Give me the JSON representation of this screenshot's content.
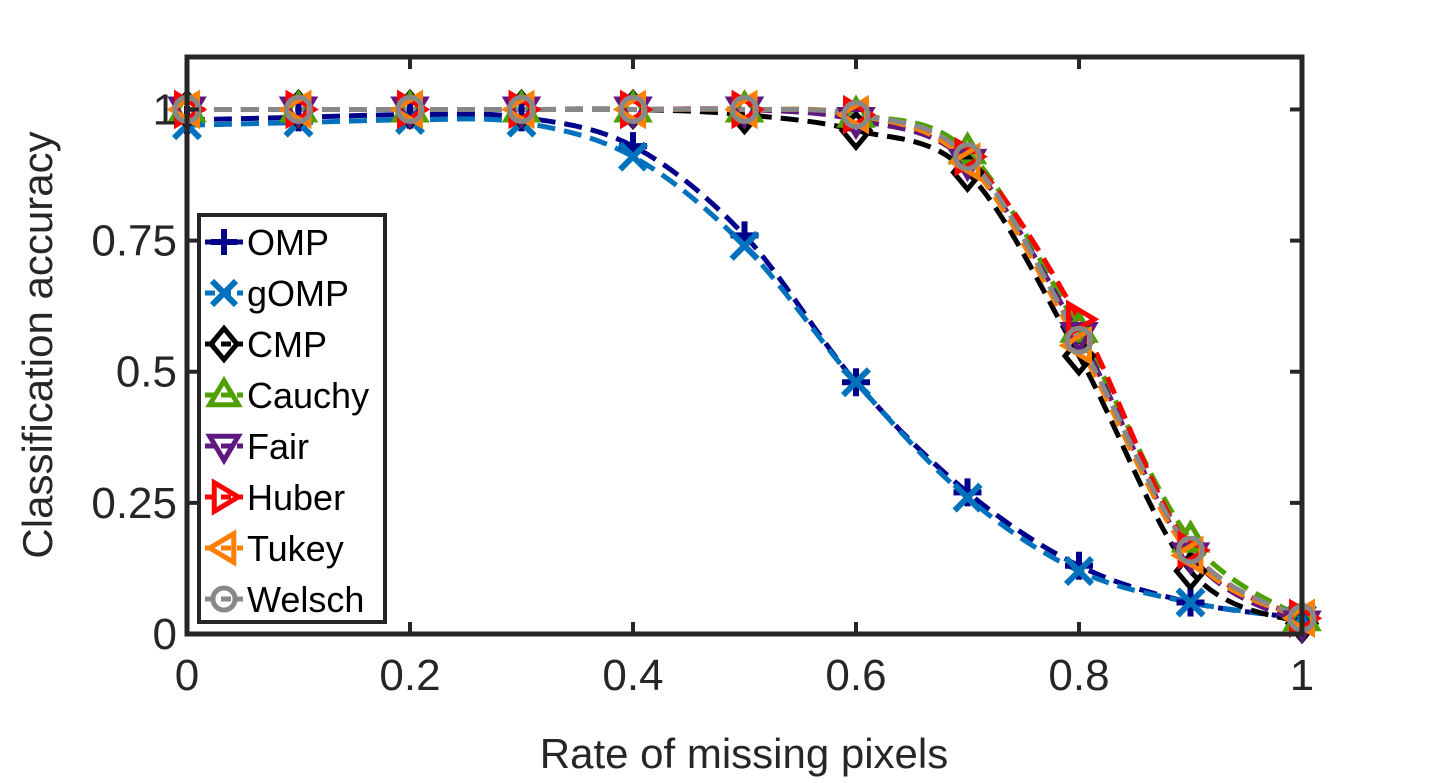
{
  "chart_data": {
    "type": "line",
    "title": "",
    "xlabel": "Rate of missing pixels",
    "ylabel": "Classification accuracy",
    "xlim": [
      0,
      1
    ],
    "ylim": [
      0,
      1.1
    ],
    "x_ticks": [
      0,
      0.2,
      0.4,
      0.6,
      0.8,
      1
    ],
    "x_tick_labels": [
      "0",
      "0.2",
      "0.4",
      "0.6",
      "0.8",
      "1"
    ],
    "y_ticks": [
      0,
      0.25,
      0.5,
      0.75,
      1
    ],
    "y_tick_labels": [
      "0",
      "0.25",
      "0.5",
      "0.75",
      "1"
    ],
    "grid": false,
    "legend_position": "left",
    "x": [
      0,
      0.1,
      0.2,
      0.3,
      0.4,
      0.5,
      0.6,
      0.7,
      0.8,
      0.9,
      1.0
    ],
    "series": [
      {
        "name": "OMP",
        "color": "#00008B",
        "marker": "plus",
        "values": [
          0.98,
          0.985,
          0.99,
          0.985,
          0.93,
          0.76,
          0.48,
          0.27,
          0.13,
          0.06,
          0.03
        ]
      },
      {
        "name": "gOMP",
        "color": "#0072BD",
        "marker": "x",
        "values": [
          0.97,
          0.975,
          0.98,
          0.975,
          0.91,
          0.74,
          0.48,
          0.26,
          0.12,
          0.06,
          0.03
        ]
      },
      {
        "name": "CMP",
        "color": "#000000",
        "marker": "diamond",
        "values": [
          1.0,
          1.0,
          1.0,
          1.0,
          1.0,
          0.99,
          0.96,
          0.88,
          0.53,
          0.12,
          0.02
        ]
      },
      {
        "name": "Cauchy",
        "color": "#4DA000",
        "marker": "triangle-up",
        "values": [
          1.0,
          1.0,
          1.0,
          1.0,
          1.0,
          1.0,
          0.99,
          0.92,
          0.58,
          0.18,
          0.03
        ]
      },
      {
        "name": "Fair",
        "color": "#5E1880",
        "marker": "triangle-down",
        "values": [
          1.0,
          1.0,
          1.0,
          1.0,
          1.0,
          1.0,
          0.98,
          0.9,
          0.57,
          0.15,
          0.02
        ]
      },
      {
        "name": "Huber",
        "color": "#FF0000",
        "marker": "triangle-right",
        "values": [
          1.0,
          1.0,
          1.0,
          1.0,
          1.0,
          1.0,
          0.99,
          0.91,
          0.6,
          0.16,
          0.03
        ]
      },
      {
        "name": "Tukey",
        "color": "#FF8000",
        "marker": "triangle-left",
        "values": [
          1.0,
          1.0,
          1.0,
          1.0,
          1.0,
          1.0,
          0.99,
          0.9,
          0.55,
          0.15,
          0.03
        ]
      },
      {
        "name": "Welsch",
        "color": "#888888",
        "marker": "circle",
        "values": [
          1.0,
          1.0,
          1.0,
          1.0,
          1.0,
          1.0,
          0.99,
          0.91,
          0.56,
          0.16,
          0.03
        ]
      }
    ]
  }
}
